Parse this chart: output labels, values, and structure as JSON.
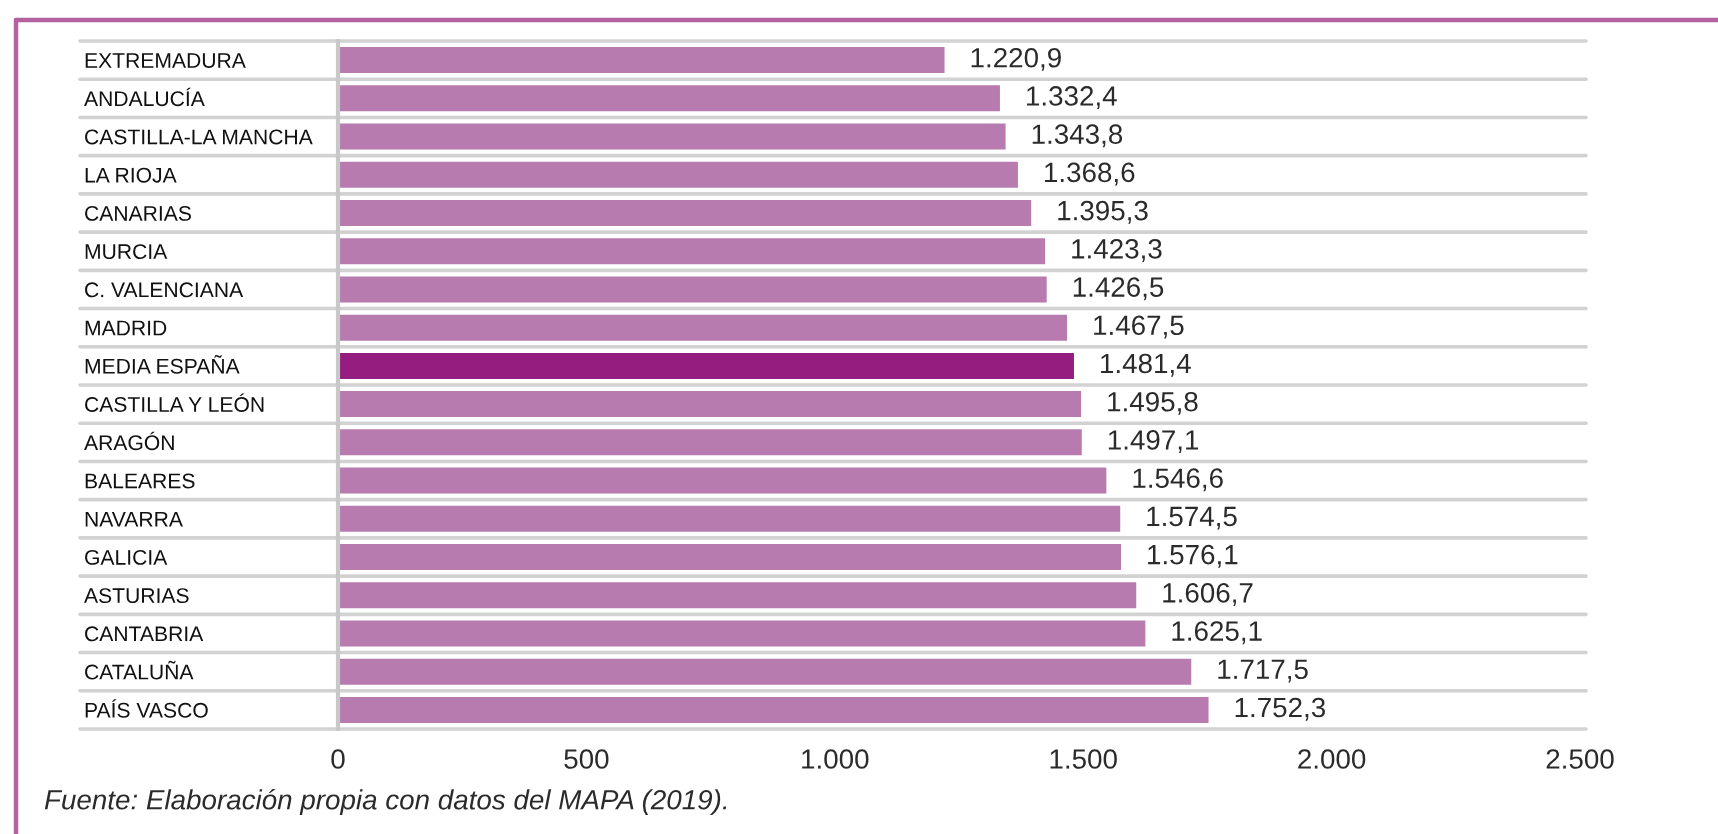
{
  "chart_data": {
    "type": "bar",
    "orientation": "horizontal",
    "categories": [
      "EXTREMADURA",
      "ANDALUCÍA",
      "CASTILLA-LA MANCHA",
      "LA RIOJA",
      "CANARIAS",
      "MURCIA",
      "C. VALENCIANA",
      "MADRID",
      "MEDIA ESPAÑA",
      "CASTILLA Y LEÓN",
      "ARAGÓN",
      "BALEARES",
      "NAVARRA",
      "GALICIA",
      "ASTURIAS",
      "CANTABRIA",
      "CATALUÑA",
      "PAÍS VASCO"
    ],
    "values": [
      1220.9,
      1332.4,
      1343.8,
      1368.6,
      1395.3,
      1423.3,
      1426.5,
      1467.5,
      1481.4,
      1495.8,
      1497.1,
      1546.6,
      1574.5,
      1576.1,
      1606.7,
      1625.1,
      1717.5,
      1752.3
    ],
    "value_labels": [
      "1.220,9",
      "1.332,4",
      "1.343,8",
      "1.368,6",
      "1.395,3",
      "1.423,3",
      "1.426,5",
      "1.467,5",
      "1.481,4",
      "1.495,8",
      "1.497,1",
      "1.546,6",
      "1.574,5",
      "1.576,1",
      "1.606,7",
      "1.625,1",
      "1.717,5",
      "1.752,3"
    ],
    "colors": [
      "#b87bb0",
      "#b87bb0",
      "#b87bb0",
      "#b87bb0",
      "#b87bb0",
      "#b87bb0",
      "#b87bb0",
      "#b87bb0",
      "#951d7f",
      "#b87bb0",
      "#b87bb0",
      "#b87bb0",
      "#b87bb0",
      "#b87bb0",
      "#b87bb0",
      "#b87bb0",
      "#b87bb0",
      "#b87bb0"
    ],
    "xlim": [
      0,
      2500
    ],
    "xticks": [
      0,
      500,
      {
        "value": 1000,
        "label": "1.000"
      },
      {
        "value": 1500,
        "label": "1.500"
      },
      {
        "value": 2000,
        "label": "2.000"
      },
      {
        "value": 2500,
        "label": "2.500"
      }
    ],
    "grid": "y",
    "annotations": [
      "Fuente: Elaboración propia con datos del MAPA (2019)."
    ]
  }
}
